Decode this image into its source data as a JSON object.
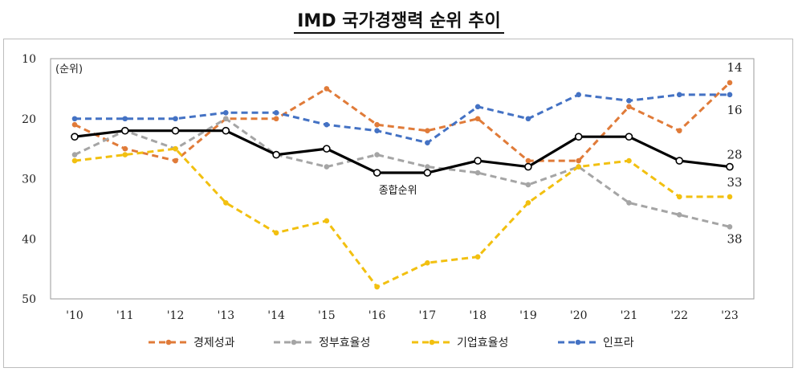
{
  "title": "IMD 국가경쟁력 순위 추이",
  "chart_data": {
    "type": "line",
    "title": "IMD 국가경쟁력 순위 추이",
    "ylabel": "(순위)",
    "ylim": [
      10,
      50
    ],
    "y_inverted": true,
    "y_ticks": [
      "10",
      "20",
      "30",
      "40",
      "50"
    ],
    "categories": [
      "'10",
      "'11",
      "'12",
      "'13",
      "'14",
      "'15",
      "'16",
      "'17",
      "'18",
      "'19",
      "'20",
      "'21",
      "'22",
      "'23"
    ],
    "series": [
      {
        "name": "경제성과",
        "color": "#E07B39",
        "dashed": true,
        "values": [
          21,
          25,
          27,
          20,
          20,
          15,
          21,
          22,
          20,
          27,
          27,
          18,
          22,
          14
        ],
        "end_label": "14"
      },
      {
        "name": "정부효율성",
        "color": "#A5A5A5",
        "dashed": true,
        "values": [
          26,
          22,
          25,
          20,
          26,
          28,
          26,
          28,
          29,
          31,
          28,
          34,
          36,
          38
        ],
        "end_label": "38"
      },
      {
        "name": "기업효율성",
        "color": "#F2C010",
        "dashed": true,
        "values": [
          27,
          26,
          25,
          34,
          39,
          37,
          48,
          44,
          43,
          34,
          28,
          27,
          33,
          33
        ],
        "end_label": "33"
      },
      {
        "name": "인프라",
        "color": "#4472C4",
        "dashed": true,
        "values": [
          20,
          20,
          20,
          19,
          19,
          21,
          22,
          24,
          18,
          20,
          16,
          17,
          16,
          16
        ],
        "end_label": "16"
      },
      {
        "name": "종합순위",
        "color": "#000000",
        "dashed": false,
        "values": [
          23,
          22,
          22,
          22,
          26,
          25,
          29,
          29,
          27,
          28,
          23,
          23,
          27,
          28
        ],
        "end_label": "28"
      }
    ],
    "annotations": [
      {
        "text": "종합순위",
        "category": "'16",
        "value": 31.8
      }
    ],
    "legend_position": "bottom",
    "grid": false
  }
}
